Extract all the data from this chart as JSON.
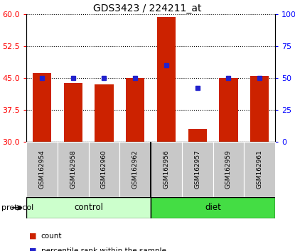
{
  "title": "GDS3423 / 224211_at",
  "samples": [
    "GSM162954",
    "GSM162958",
    "GSM162960",
    "GSM162962",
    "GSM162956",
    "GSM162957",
    "GSM162959",
    "GSM162961"
  ],
  "counts": [
    46.2,
    43.8,
    43.5,
    45.0,
    59.3,
    33.0,
    45.0,
    45.5
  ],
  "percentile_ranks": [
    50,
    50,
    50,
    50,
    60,
    42,
    50,
    50
  ],
  "groups": [
    "control",
    "control",
    "control",
    "control",
    "diet",
    "diet",
    "diet",
    "diet"
  ],
  "bar_color": "#cc2200",
  "marker_color": "#2222cc",
  "left_ylim": [
    30,
    60
  ],
  "right_ylim": [
    0,
    100
  ],
  "left_yticks": [
    30,
    37.5,
    45,
    52.5,
    60
  ],
  "right_yticks": [
    0,
    25,
    50,
    75,
    100
  ],
  "right_yticklabels": [
    "0",
    "25",
    "50",
    "75",
    "100%"
  ],
  "control_color": "#ccffcc",
  "diet_color": "#44dd44",
  "protocol_label": "protocol",
  "legend_items": [
    "count",
    "percentile rank within the sample"
  ]
}
